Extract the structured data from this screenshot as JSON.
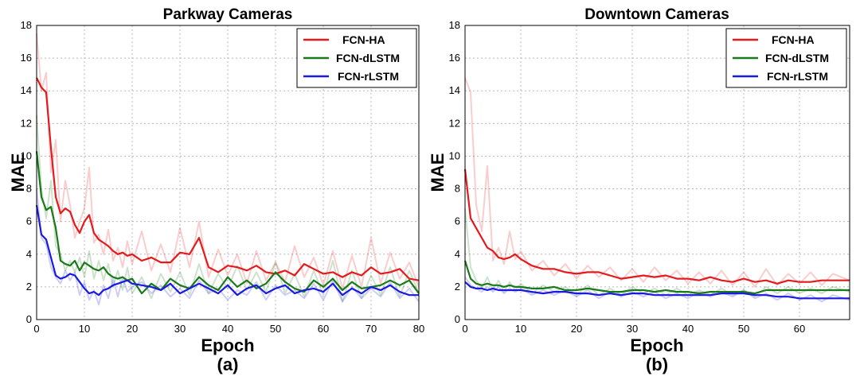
{
  "chart_data": [
    {
      "type": "line",
      "title": "Parkway Cameras",
      "xlabel": "Epoch",
      "ylabel": "MAE",
      "sublabel": "(a)",
      "xlim": [
        0,
        80
      ],
      "ylim": [
        0,
        18
      ],
      "xticks": [
        0,
        10,
        20,
        30,
        40,
        50,
        60,
        70,
        80
      ],
      "yticks": [
        0,
        2,
        4,
        6,
        8,
        10,
        12,
        14,
        16,
        18
      ],
      "grid": true,
      "legend": "top-right",
      "series": [
        {
          "name": "FCN-HA",
          "color": "#e41a1c",
          "x": [
            0,
            1,
            2,
            3,
            4,
            5,
            6,
            7,
            8,
            9,
            10,
            11,
            12,
            13,
            14,
            15,
            16,
            17,
            18,
            19,
            20,
            22,
            24,
            26,
            28,
            30,
            32,
            34,
            36,
            38,
            40,
            42,
            44,
            46,
            48,
            50,
            52,
            54,
            56,
            58,
            60,
            62,
            64,
            66,
            68,
            70,
            72,
            74,
            76,
            78,
            80
          ],
          "values": [
            14.8,
            14.2,
            13.9,
            10.5,
            7.5,
            6.5,
            6.8,
            6.6,
            5.8,
            5.3,
            6.0,
            6.4,
            5.3,
            4.9,
            4.7,
            4.5,
            4.2,
            4.0,
            4.1,
            3.9,
            4.0,
            3.6,
            3.8,
            3.5,
            3.5,
            4.1,
            4.0,
            5.0,
            3.2,
            2.9,
            3.3,
            3.2,
            3.0,
            3.3,
            2.9,
            2.8,
            3.0,
            2.7,
            3.4,
            3.1,
            2.8,
            2.9,
            2.6,
            2.9,
            2.7,
            3.2,
            2.8,
            2.9,
            3.1,
            2.5,
            2.4
          ],
          "raw": [
            17.5,
            14.0,
            15.1,
            9.0,
            11.0,
            6.0,
            8.5,
            7.0,
            5.0,
            6.0,
            6.8,
            9.3,
            4.7,
            5.2,
            4.0,
            5.5,
            3.6,
            4.4,
            3.2,
            4.8,
            3.4,
            5.4,
            3.0,
            4.6,
            2.9,
            5.6,
            3.2,
            6.0,
            2.6,
            4.3,
            2.7,
            4.0,
            2.2,
            4.2,
            2.4,
            3.5,
            2.3,
            4.5,
            2.6,
            3.8,
            2.1,
            4.2,
            1.9,
            3.9,
            2.0,
            5.0,
            2.2,
            4.1,
            2.5,
            3.5,
            2.0
          ]
        },
        {
          "name": "FCN-dLSTM",
          "color": "#1a7a1a",
          "x": [
            0,
            1,
            2,
            3,
            4,
            5,
            6,
            7,
            8,
            9,
            10,
            11,
            12,
            13,
            14,
            15,
            16,
            17,
            18,
            19,
            20,
            22,
            24,
            26,
            28,
            30,
            32,
            34,
            36,
            38,
            40,
            42,
            44,
            46,
            48,
            50,
            52,
            54,
            56,
            58,
            60,
            62,
            64,
            66,
            68,
            70,
            72,
            74,
            76,
            78,
            80
          ],
          "values": [
            10.3,
            7.5,
            6.7,
            6.9,
            5.6,
            3.6,
            3.4,
            3.3,
            3.6,
            3.0,
            3.5,
            3.3,
            3.1,
            3.0,
            3.2,
            2.8,
            2.6,
            2.5,
            2.6,
            2.4,
            2.5,
            1.6,
            2.2,
            1.8,
            2.5,
            2.1,
            1.9,
            2.6,
            2.1,
            1.8,
            2.6,
            2.0,
            2.4,
            1.9,
            2.2,
            2.9,
            2.3,
            1.9,
            1.7,
            2.4,
            2.0,
            2.5,
            1.8,
            2.3,
            1.9,
            2.0,
            2.1,
            2.4,
            2.1,
            2.4,
            1.6
          ],
          "raw": [
            12.5,
            8.0,
            6.2,
            8.5,
            4.5,
            4.0,
            3.0,
            3.6,
            2.9,
            3.8,
            2.6,
            4.2,
            2.5,
            3.6,
            2.4,
            3.4,
            2.0,
            3.0,
            1.8,
            3.2,
            1.6,
            2.6,
            1.3,
            2.8,
            1.7,
            2.9,
            1.5,
            3.4,
            1.6,
            2.8,
            1.9,
            3.3,
            1.8,
            2.9,
            1.7,
            3.5,
            1.6,
            2.8,
            1.4,
            3.0,
            1.5,
            3.6,
            1.1,
            3.0,
            1.3,
            2.7,
            1.5,
            3.2,
            1.4,
            3.0,
            1.6
          ]
        },
        {
          "name": "FCN-rLSTM",
          "color": "#1a1adf",
          "x": [
            0,
            1,
            2,
            3,
            4,
            5,
            6,
            7,
            8,
            9,
            10,
            11,
            12,
            13,
            14,
            15,
            16,
            17,
            18,
            19,
            20,
            22,
            24,
            26,
            28,
            30,
            32,
            34,
            36,
            38,
            40,
            42,
            44,
            46,
            48,
            50,
            52,
            54,
            56,
            58,
            60,
            62,
            64,
            66,
            68,
            70,
            72,
            74,
            76,
            78,
            80
          ],
          "values": [
            7.0,
            5.2,
            4.9,
            3.8,
            2.7,
            2.5,
            2.6,
            2.8,
            2.7,
            2.3,
            1.9,
            1.6,
            1.7,
            1.5,
            1.8,
            1.9,
            2.1,
            2.2,
            2.3,
            2.4,
            2.2,
            2.1,
            2.0,
            1.8,
            2.2,
            1.6,
            1.9,
            2.2,
            1.9,
            1.6,
            2.1,
            1.5,
            1.9,
            2.1,
            1.6,
            1.9,
            2.1,
            1.6,
            1.8,
            1.9,
            1.7,
            2.2,
            1.5,
            1.9,
            1.6,
            2.0,
            1.8,
            2.1,
            1.7,
            1.5,
            1.5
          ],
          "raw": [
            8.0,
            5.0,
            4.6,
            3.2,
            2.6,
            2.2,
            3.0,
            2.4,
            2.9,
            1.5,
            2.3,
            1.2,
            1.8,
            0.9,
            2.1,
            1.3,
            2.5,
            1.4,
            2.6,
            1.7,
            2.0,
            2.3,
            1.6,
            2.1,
            1.4,
            1.9,
            1.3,
            2.4,
            1.6,
            1.9,
            1.2,
            1.8,
            1.5,
            2.3,
            1.2,
            2.1,
            1.5,
            1.8,
            1.3,
            2.2,
            1.2,
            2.4,
            1.1,
            2.0,
            1.3,
            1.9,
            1.4,
            2.3,
            1.3,
            1.9,
            1.1
          ]
        }
      ]
    },
    {
      "type": "line",
      "title": "Downtown Cameras",
      "xlabel": "Epoch",
      "ylabel": "MAE",
      "sublabel": "(b)",
      "xlim": [
        0,
        69
      ],
      "ylim": [
        0,
        18
      ],
      "xticks": [
        0,
        10,
        20,
        30,
        40,
        50,
        60
      ],
      "yticks": [
        0,
        2,
        4,
        6,
        8,
        10,
        12,
        14,
        16,
        18
      ],
      "grid": true,
      "legend": "top-right",
      "series": [
        {
          "name": "FCN-HA",
          "color": "#e41a1c",
          "x": [
            0,
            1,
            2,
            3,
            4,
            5,
            6,
            7,
            8,
            9,
            10,
            12,
            14,
            16,
            18,
            20,
            22,
            24,
            26,
            28,
            30,
            32,
            34,
            36,
            38,
            40,
            42,
            44,
            46,
            48,
            50,
            52,
            54,
            56,
            58,
            60,
            62,
            64,
            66,
            69
          ],
          "values": [
            9.2,
            6.2,
            5.6,
            5.0,
            4.4,
            4.2,
            3.8,
            3.7,
            3.8,
            4.0,
            3.7,
            3.3,
            3.1,
            3.1,
            2.9,
            2.8,
            2.9,
            2.9,
            2.7,
            2.5,
            2.6,
            2.7,
            2.6,
            2.7,
            2.5,
            2.5,
            2.4,
            2.6,
            2.4,
            2.3,
            2.5,
            2.3,
            2.4,
            2.2,
            2.4,
            2.3,
            2.3,
            2.4,
            2.4,
            2.4
          ],
          "raw": [
            14.8,
            13.9,
            7.0,
            5.4,
            9.4,
            3.6,
            4.4,
            3.4,
            5.4,
            3.7,
            4.2,
            3.0,
            3.6,
            2.7,
            3.4,
            2.5,
            3.3,
            2.6,
            3.2,
            2.4,
            3.1,
            2.3,
            3.2,
            2.4,
            3.0,
            2.2,
            2.9,
            2.2,
            3.0,
            2.1,
            2.9,
            2.0,
            3.1,
            2.1,
            2.8,
            2.2,
            2.9,
            2.1,
            2.8,
            2.4
          ]
        },
        {
          "name": "FCN-dLSTM",
          "color": "#1a7a1a",
          "x": [
            0,
            1,
            2,
            3,
            4,
            5,
            6,
            7,
            8,
            9,
            10,
            12,
            14,
            16,
            18,
            20,
            22,
            24,
            26,
            28,
            30,
            32,
            34,
            36,
            38,
            40,
            42,
            44,
            46,
            48,
            50,
            52,
            54,
            56,
            58,
            60,
            62,
            64,
            66,
            69
          ],
          "values": [
            3.6,
            2.5,
            2.2,
            2.1,
            2.2,
            2.1,
            2.1,
            2.0,
            2.1,
            2.0,
            2.0,
            1.9,
            1.9,
            2.0,
            1.8,
            1.8,
            1.9,
            1.8,
            1.7,
            1.7,
            1.8,
            1.8,
            1.7,
            1.8,
            1.7,
            1.7,
            1.6,
            1.7,
            1.7,
            1.7,
            1.7,
            1.6,
            1.8,
            1.8,
            1.8,
            1.8,
            1.8,
            1.8,
            1.8,
            1.8
          ],
          "raw": [
            6.8,
            3.2,
            2.4,
            1.9,
            2.6,
            1.8,
            2.4,
            1.7,
            2.3,
            1.8,
            2.2,
            1.6,
            2.1,
            1.7,
            2.0,
            1.5,
            2.1,
            1.5,
            1.9,
            1.5,
            2.0,
            1.6,
            1.9,
            1.5,
            1.9,
            1.5,
            1.8,
            1.5,
            1.9,
            1.5,
            1.8,
            1.4,
            2.0,
            1.6,
            2.0,
            1.6,
            1.9,
            1.6,
            2.0,
            1.7
          ]
        },
        {
          "name": "FCN-rLSTM",
          "color": "#1a1adf",
          "x": [
            0,
            1,
            2,
            3,
            4,
            5,
            6,
            7,
            8,
            9,
            10,
            12,
            14,
            16,
            18,
            20,
            22,
            24,
            26,
            28,
            30,
            32,
            34,
            36,
            38,
            40,
            42,
            44,
            46,
            48,
            50,
            52,
            54,
            56,
            58,
            60,
            62,
            64,
            66,
            69
          ],
          "values": [
            2.3,
            2.0,
            1.9,
            1.9,
            1.8,
            1.9,
            1.8,
            1.8,
            1.8,
            1.8,
            1.8,
            1.7,
            1.6,
            1.7,
            1.7,
            1.6,
            1.6,
            1.5,
            1.6,
            1.5,
            1.6,
            1.6,
            1.5,
            1.5,
            1.5,
            1.5,
            1.5,
            1.5,
            1.6,
            1.6,
            1.6,
            1.5,
            1.5,
            1.4,
            1.4,
            1.3,
            1.3,
            1.3,
            1.3,
            1.3
          ],
          "raw": [
            2.6,
            2.1,
            1.9,
            1.7,
            2.0,
            1.7,
            2.0,
            1.6,
            1.9,
            1.7,
            1.9,
            1.5,
            1.8,
            1.5,
            1.8,
            1.4,
            1.8,
            1.3,
            1.7,
            1.4,
            1.7,
            1.4,
            1.7,
            1.3,
            1.6,
            1.3,
            1.7,
            1.4,
            1.7,
            1.4,
            1.8,
            1.3,
            1.6,
            1.2,
            1.6,
            1.2,
            1.5,
            1.1,
            1.5,
            1.2
          ]
        }
      ]
    }
  ]
}
